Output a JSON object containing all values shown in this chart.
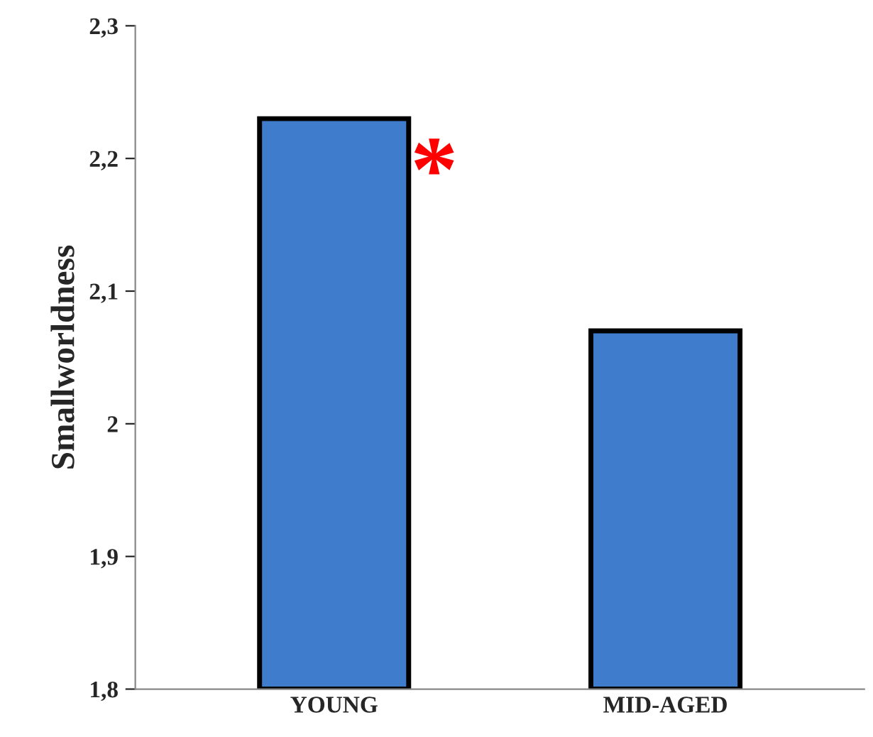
{
  "chart_data": {
    "type": "bar",
    "ylabel": "Smallworldness",
    "categories": [
      "YOUNG",
      "MID-AGED"
    ],
    "values": [
      2.23,
      2.07
    ],
    "color": "#3f7ccc",
    "ylim": [
      1.8,
      2.3
    ],
    "yticks": [
      {
        "value": 1.8,
        "label": "1,8"
      },
      {
        "value": 1.9,
        "label": "1,9"
      },
      {
        "value": 2.0,
        "label": "2"
      },
      {
        "value": 2.1,
        "label": "2,1"
      },
      {
        "value": 2.2,
        "label": "2,2"
      },
      {
        "value": 2.3,
        "label": "2,3"
      }
    ],
    "annotations": [
      "*"
    ],
    "grid": false,
    "legend": false
  }
}
